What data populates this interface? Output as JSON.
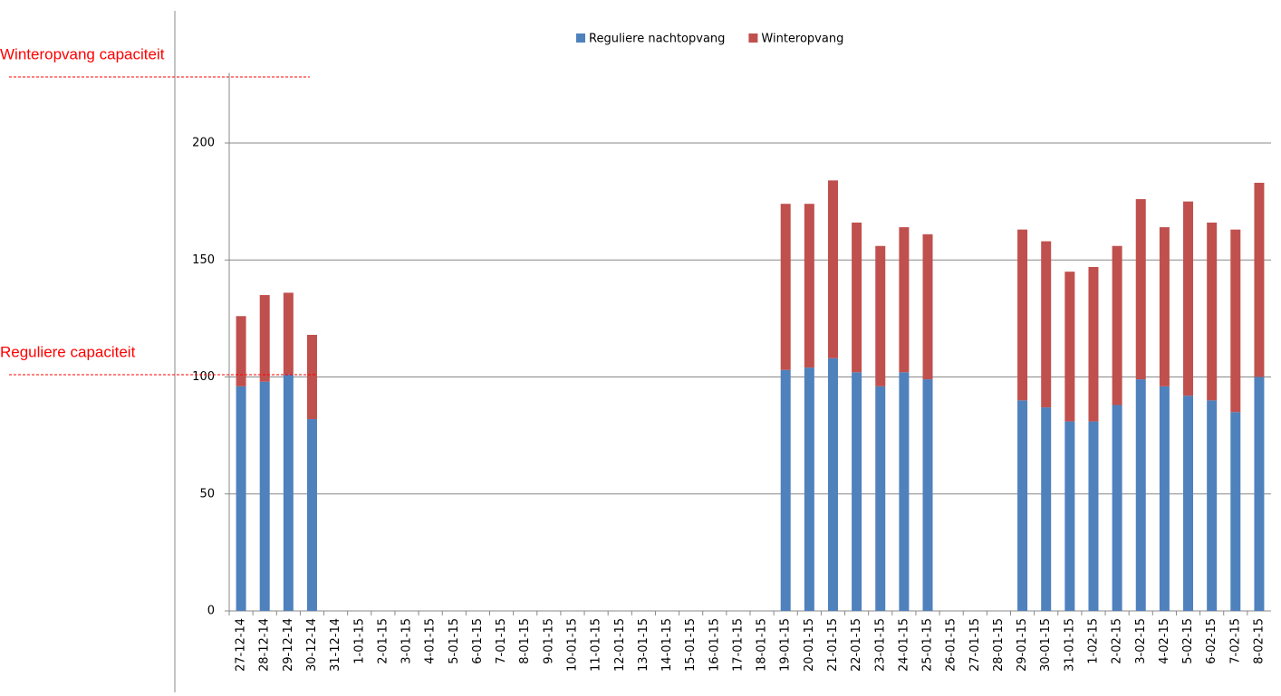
{
  "chart_data": {
    "type": "stacked_bar",
    "annotations": [
      "Winteropvang capaciteit",
      "Reguliere capaciteit"
    ],
    "categories": [
      "27-12-14",
      "28-12-14",
      "29-12-14",
      "30-12-14",
      "31-12-14",
      "1-01-15",
      "2-01-15",
      "3-01-15",
      "4-01-15",
      "5-01-15",
      "6-01-15",
      "7-01-15",
      "8-01-15",
      "9-01-15",
      "10-01-15",
      "11-01-15",
      "12-01-15",
      "13-01-15",
      "14-01-15",
      "15-01-15",
      "16-01-15",
      "17-01-15",
      "18-01-15",
      "19-01-15",
      "20-01-15",
      "21-01-15",
      "22-01-15",
      "23-01-15",
      "24-01-15",
      "25-01-15",
      "26-01-15",
      "27-01-15",
      "28-01-15",
      "29-01-15",
      "30-01-15",
      "31-01-15",
      "1-02-15",
      "2-02-15",
      "3-02-15",
      "4-02-15",
      "5-02-15",
      "6-02-15",
      "7-02-15",
      "8-02-15"
    ],
    "series": [
      {
        "name": "Reguliere nachtopvang",
        "color": "#4f81bd",
        "values": [
          96,
          98,
          101,
          82,
          null,
          null,
          null,
          null,
          null,
          null,
          null,
          null,
          null,
          null,
          null,
          null,
          null,
          null,
          null,
          null,
          null,
          null,
          null,
          103,
          104,
          108,
          102,
          96,
          102,
          99,
          null,
          null,
          null,
          90,
          87,
          81,
          81,
          88,
          99,
          96,
          92,
          90,
          85,
          100
        ]
      },
      {
        "name": "Winteropvang",
        "color": "#c0504d",
        "values": [
          30,
          37,
          35,
          36,
          null,
          null,
          null,
          null,
          null,
          null,
          null,
          null,
          null,
          null,
          null,
          null,
          null,
          null,
          null,
          null,
          null,
          null,
          null,
          71,
          70,
          76,
          64,
          60,
          62,
          62,
          null,
          null,
          null,
          73,
          71,
          64,
          66,
          68,
          77,
          68,
          83,
          76,
          78,
          83
        ]
      }
    ],
    "ylim": [
      0,
      230
    ],
    "yticks": [
      0,
      50,
      100,
      150,
      200
    ],
    "grid": true,
    "legend": "top"
  }
}
